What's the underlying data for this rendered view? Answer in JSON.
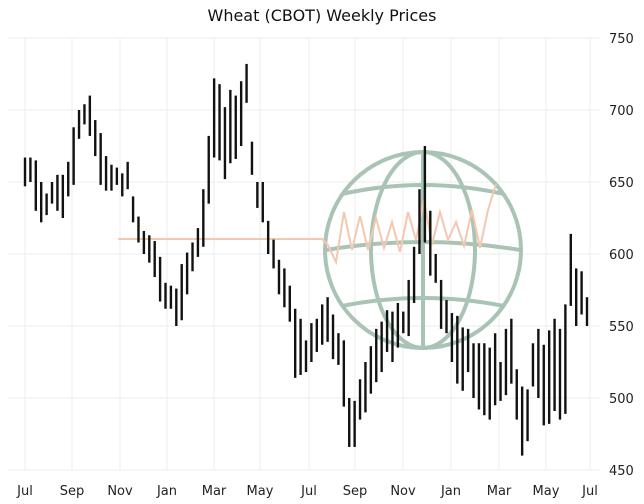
{
  "chart_data": {
    "type": "bar",
    "subtype": "ohlc-weekly",
    "title": "Wheat (CBOT) Weekly Prices",
    "xlabel": "",
    "ylabel": "",
    "ylim": [
      450,
      750
    ],
    "y_ticks": [
      450,
      500,
      550,
      600,
      650,
      700,
      750
    ],
    "x_ticks": [
      "Jul",
      "Sep",
      "Nov",
      "Jan",
      "Mar",
      "May",
      "Jul",
      "Sep",
      "Nov",
      "Jan",
      "Mar",
      "May",
      "Jul"
    ],
    "grid": true,
    "colors": {
      "bars": "#111111",
      "grid": "#eeeeee",
      "logo": "#a9c4b4",
      "logo_wave": "#f2c9b0"
    },
    "bars": [
      [
        667,
        647
      ],
      [
        667,
        650
      ],
      [
        665,
        630
      ],
      [
        650,
        622
      ],
      [
        642,
        627
      ],
      [
        650,
        635
      ],
      [
        655,
        630
      ],
      [
        655,
        625
      ],
      [
        664,
        640
      ],
      [
        688,
        648
      ],
      [
        700,
        680
      ],
      [
        704,
        690
      ],
      [
        710,
        682
      ],
      [
        693,
        668
      ],
      [
        684,
        648
      ],
      [
        668,
        644
      ],
      [
        662,
        644
      ],
      [
        660,
        648
      ],
      [
        656,
        640
      ],
      [
        664,
        645
      ],
      [
        640,
        622
      ],
      [
        626,
        608
      ],
      [
        616,
        600
      ],
      [
        613,
        594
      ],
      [
        609,
        584
      ],
      [
        598,
        567
      ],
      [
        580,
        562
      ],
      [
        578,
        562
      ],
      [
        576,
        550
      ],
      [
        593,
        554
      ],
      [
        601,
        572
      ],
      [
        608,
        588
      ],
      [
        618,
        598
      ],
      [
        645,
        605
      ],
      [
        682,
        635
      ],
      [
        722,
        667
      ],
      [
        718,
        665
      ],
      [
        702,
        652
      ],
      [
        714,
        663
      ],
      [
        710,
        666
      ],
      [
        720,
        675
      ],
      [
        732,
        705
      ],
      [
        678,
        655
      ],
      [
        650,
        632
      ],
      [
        650,
        622
      ],
      [
        623,
        600
      ],
      [
        610,
        590
      ],
      [
        596,
        572
      ],
      [
        590,
        563
      ],
      [
        578,
        553
      ],
      [
        562,
        514
      ],
      [
        555,
        516
      ],
      [
        540,
        518
      ],
      [
        552,
        525
      ],
      [
        555,
        532
      ],
      [
        565,
        537
      ],
      [
        570,
        539
      ],
      [
        558,
        527
      ],
      [
        545,
        523
      ],
      [
        540,
        494
      ],
      [
        500,
        466
      ],
      [
        498,
        466
      ],
      [
        513,
        485
      ],
      [
        525,
        490
      ],
      [
        536,
        503
      ],
      [
        548,
        511
      ],
      [
        553,
        518
      ],
      [
        561,
        532
      ],
      [
        560,
        525
      ],
      [
        566,
        535
      ],
      [
        560,
        545
      ],
      [
        582,
        543
      ],
      [
        605,
        566
      ],
      [
        645,
        600
      ],
      [
        675,
        608
      ],
      [
        630,
        585
      ],
      [
        600,
        580
      ],
      [
        582,
        548
      ],
      [
        568,
        545
      ],
      [
        559,
        525
      ],
      [
        557,
        510
      ],
      [
        549,
        505
      ],
      [
        548,
        518
      ],
      [
        538,
        500
      ],
      [
        538,
        492
      ],
      [
        538,
        488
      ],
      [
        535,
        485
      ],
      [
        545,
        495
      ],
      [
        525,
        498
      ],
      [
        548,
        502
      ],
      [
        555,
        510
      ],
      [
        520,
        485
      ],
      [
        508,
        460
      ],
      [
        506,
        470
      ],
      [
        538,
        508
      ],
      [
        548,
        500
      ],
      [
        537,
        481
      ],
      [
        547,
        482
      ],
      [
        555,
        491
      ],
      [
        548,
        485
      ],
      [
        565,
        489
      ],
      [
        614,
        564
      ],
      [
        590,
        550
      ],
      [
        588,
        558
      ],
      [
        570,
        550
      ]
    ]
  }
}
